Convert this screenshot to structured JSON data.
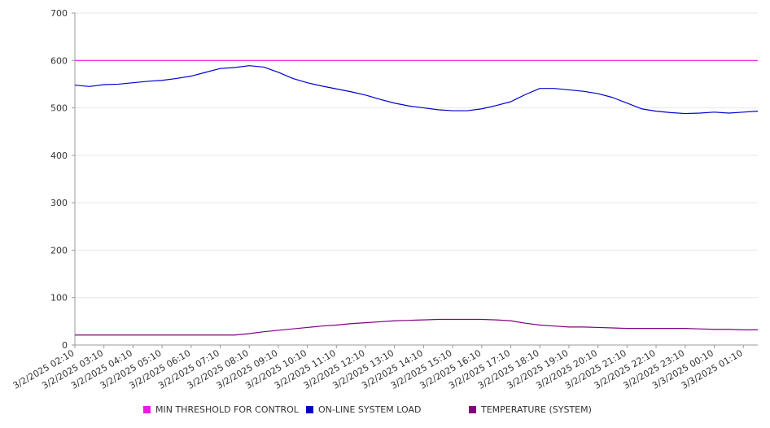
{
  "chart_data": {
    "type": "line",
    "title": "",
    "xlabel": "",
    "ylabel": "",
    "ylim": [
      0,
      700
    ],
    "yticks": [
      0,
      100,
      200,
      300,
      400,
      500,
      600,
      700
    ],
    "grid": true,
    "legend_position": "bottom",
    "x_tick_labels": [
      "3/2/2025 02:10",
      "3/2/2025 03:10",
      "3/2/2025 04:10",
      "3/2/2025 05:10",
      "3/2/2025 06:10",
      "3/2/2025 07:10",
      "3/2/2025 08:10",
      "3/2/2025 09:10",
      "3/2/2025 10:10",
      "3/2/2025 11:10",
      "3/2/2025 12:10",
      "3/2/2025 13:10",
      "3/2/2025 14:10",
      "3/2/2025 15:10",
      "3/2/2025 16:10",
      "3/2/2025 17:10",
      "3/2/2025 18:10",
      "3/2/2025 19:10",
      "3/2/2025 20:10",
      "3/2/2025 21:10",
      "3/2/2025 22:10",
      "3/2/2025 23:10",
      "3/3/2025 00:10",
      "3/3/2025 01:10"
    ],
    "x": [
      "3/2/2025 02:10",
      "3/2/2025 02:40",
      "3/2/2025 03:10",
      "3/2/2025 03:40",
      "3/2/2025 04:10",
      "3/2/2025 04:40",
      "3/2/2025 05:10",
      "3/2/2025 05:40",
      "3/2/2025 06:10",
      "3/2/2025 06:40",
      "3/2/2025 07:10",
      "3/2/2025 07:40",
      "3/2/2025 08:10",
      "3/2/2025 08:40",
      "3/2/2025 09:10",
      "3/2/2025 09:40",
      "3/2/2025 10:10",
      "3/2/2025 10:40",
      "3/2/2025 11:10",
      "3/2/2025 11:40",
      "3/2/2025 12:10",
      "3/2/2025 12:40",
      "3/2/2025 13:10",
      "3/2/2025 13:40",
      "3/2/2025 14:10",
      "3/2/2025 14:40",
      "3/2/2025 15:10",
      "3/2/2025 15:40",
      "3/2/2025 16:10",
      "3/2/2025 16:40",
      "3/2/2025 17:10",
      "3/2/2025 17:40",
      "3/2/2025 18:10",
      "3/2/2025 18:40",
      "3/2/2025 19:10",
      "3/2/2025 19:40",
      "3/2/2025 20:10",
      "3/2/2025 20:40",
      "3/2/2025 21:10",
      "3/2/2025 21:40",
      "3/2/2025 22:10",
      "3/2/2025 22:40",
      "3/2/2025 23:10",
      "3/2/2025 23:40",
      "3/3/2025 00:10",
      "3/3/2025 00:40",
      "3/3/2025 01:10",
      "3/3/2025 01:40"
    ],
    "series": [
      {
        "name": "MIN THRESHOLD FOR CONTROL",
        "color": "#e81be8",
        "values": [
          600,
          600,
          600,
          600,
          600,
          600,
          600,
          600,
          600,
          600,
          600,
          600,
          600,
          600,
          600,
          600,
          600,
          600,
          600,
          600,
          600,
          600,
          600,
          600,
          600,
          600,
          600,
          600,
          600,
          600,
          600,
          600,
          600,
          600,
          600,
          600,
          600,
          600,
          600,
          600,
          600,
          600,
          600,
          600,
          600,
          600,
          600,
          600
        ]
      },
      {
        "name": "ON-LINE SYSTEM LOAD",
        "color": "#0000cc",
        "values": [
          548,
          545,
          549,
          550,
          553,
          556,
          558,
          562,
          567,
          575,
          583,
          585,
          589,
          586,
          575,
          562,
          553,
          546,
          540,
          534,
          527,
          518,
          510,
          504,
          500,
          496,
          494,
          494,
          498,
          505,
          513,
          528,
          541,
          541,
          538,
          535,
          530,
          522,
          510,
          498,
          493,
          490,
          488,
          489,
          491,
          489,
          491,
          493
        ]
      },
      {
        "name": "TEMPERATURE (SYSTEM)",
        "color": "#800080",
        "values": [
          21,
          21,
          21,
          21,
          21,
          21,
          21,
          21,
          21,
          21,
          21,
          21,
          24,
          28,
          31,
          34,
          37,
          40,
          42,
          45,
          47,
          49,
          51,
          52,
          53,
          54,
          54,
          54,
          54,
          53,
          51,
          46,
          42,
          40,
          38,
          38,
          37,
          36,
          35,
          35,
          35,
          35,
          35,
          34,
          33,
          33,
          32,
          32
        ]
      }
    ]
  }
}
